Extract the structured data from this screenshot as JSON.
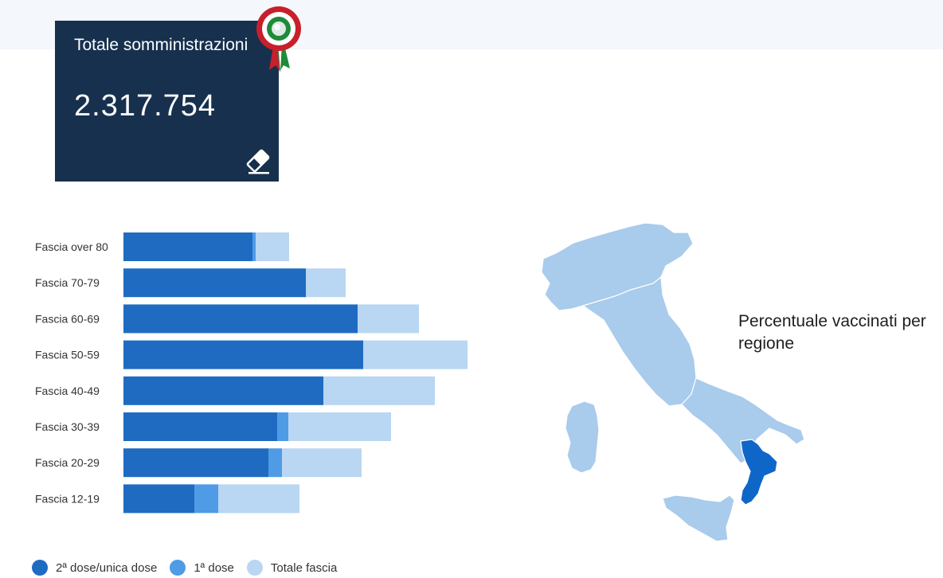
{
  "card": {
    "title": "Totale somministrazioni",
    "value": "2.317.754"
  },
  "icons": {
    "cockade": "italian-cockade-icon",
    "eraser": "eraser-icon"
  },
  "map": {
    "title": "Percentuale vaccinati per regione",
    "highlighted_region": "Calabria",
    "colors": {
      "base": "#a9cbec",
      "highlight": "#0f66c9",
      "border": "#ffffff"
    }
  },
  "chart_data": {
    "type": "bar",
    "orientation": "horizontal",
    "stacked": true,
    "categories": [
      "Fascia over 80",
      "Fascia 70-79",
      "Fascia 60-69",
      "Fascia 50-59",
      "Fascia 40-49",
      "Fascia 30-39",
      "Fascia 20-29",
      "Fascia 12-19"
    ],
    "series": [
      {
        "name": "2ª dose/unica dose",
        "color": "#1f6bc1",
        "values": [
          162,
          229,
          294,
          301,
          251,
          193,
          182,
          89
        ]
      },
      {
        "name": "1ª dose",
        "color": "#4f9be6",
        "values": [
          4,
          0,
          0,
          0,
          0,
          14,
          17,
          30
        ]
      },
      {
        "name": "Totale fascia",
        "color": "#b9d6f2",
        "values": [
          42,
          50,
          77,
          131,
          140,
          129,
          100,
          102
        ]
      }
    ],
    "xlim": [
      0,
      432
    ],
    "grid": false,
    "legend": "bottom-left",
    "title": "",
    "xlabel": "",
    "ylabel": ""
  }
}
